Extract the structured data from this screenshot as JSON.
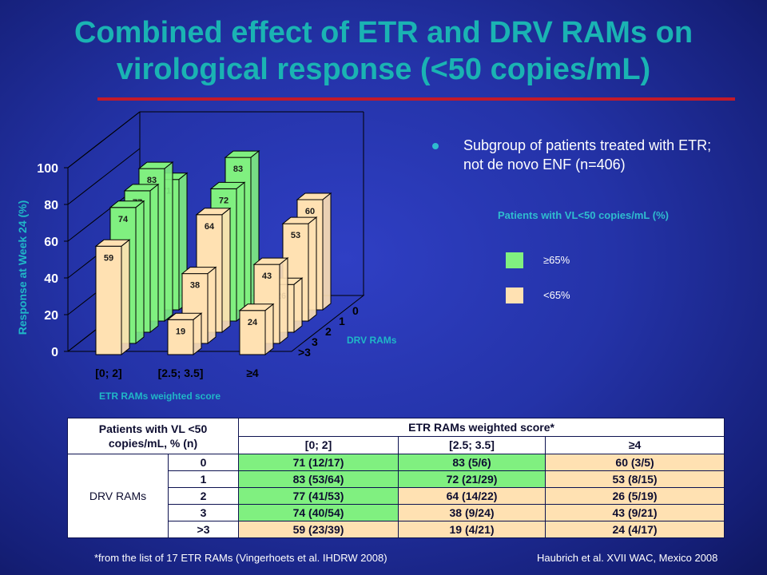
{
  "title": "Combined effect of ETR and DRV RAMs on virological response (<50 copies/mL)",
  "bullet": "Subgroup of patients treated with ETR; not de novo ENF (n=406)",
  "legend": {
    "title": "Patients with VL<50 copies/mL (%)",
    "items": [
      {
        "label": "≥65%",
        "color": "#80f080"
      },
      {
        "label": "<65%",
        "color": "#ffe1b2"
      }
    ]
  },
  "chart_data": {
    "type": "bar",
    "style": "3d-grouped",
    "ylabel": "Response at Week 24 (%)",
    "xlabel": "ETR RAMs weighted score",
    "zlabel": "DRV RAMs",
    "ylim": [
      0,
      100
    ],
    "yticks": [
      "0",
      "20",
      "40",
      "60",
      "80",
      "100"
    ],
    "categories": [
      "[0; 2]",
      "[2.5; 3.5]",
      "≥4"
    ],
    "depth_labels": [
      ">3",
      "3",
      "2",
      "1",
      "0"
    ],
    "series": [
      {
        "drv": ">3",
        "values": [
          59,
          19,
          24
        ]
      },
      {
        "drv": "3",
        "values": [
          74,
          38,
          43
        ]
      },
      {
        "drv": "2",
        "values": [
          77,
          64,
          26
        ]
      },
      {
        "drv": "1",
        "values": [
          83,
          72,
          53
        ]
      },
      {
        "drv": "0",
        "values": [
          71,
          83,
          60
        ]
      }
    ],
    "threshold": 65,
    "colors": {
      "high": "#80f080",
      "low": "#ffe1b2"
    }
  },
  "table": {
    "header_left": "Patients with VL <50 copies/mL, % (n)",
    "header_group": "ETR RAMs weighted score*",
    "columns": [
      "[0; 2]",
      "[2.5; 3.5]",
      "≥4"
    ],
    "row_group_label": "DRV RAMs",
    "rows": [
      {
        "label": "0",
        "cells": [
          {
            "text": "71 (12/17)",
            "level": "high"
          },
          {
            "text": "83 (5/6)",
            "level": "high"
          },
          {
            "text": "60 (3/5)",
            "level": "low"
          }
        ]
      },
      {
        "label": "1",
        "cells": [
          {
            "text": "83 (53/64)",
            "level": "high"
          },
          {
            "text": "72 (21/29)",
            "level": "high"
          },
          {
            "text": "53 (8/15)",
            "level": "low"
          }
        ]
      },
      {
        "label": "2",
        "cells": [
          {
            "text": "77 (41/53)",
            "level": "high"
          },
          {
            "text": "64 (14/22)",
            "level": "low"
          },
          {
            "text": "26 (5/19)",
            "level": "low"
          }
        ]
      },
      {
        "label": "3",
        "cells": [
          {
            "text": "74 (40/54)",
            "level": "high"
          },
          {
            "text": "38 (9/24)",
            "level": "low"
          },
          {
            "text": "43 (9/21)",
            "level": "low"
          }
        ]
      },
      {
        "label": ">3",
        "cells": [
          {
            "text": "59 (23/39)",
            "level": "low"
          },
          {
            "text": "19 (4/21)",
            "level": "low"
          },
          {
            "text": "24 (4/17)",
            "level": "low"
          }
        ]
      }
    ]
  },
  "footnote": "*from the list of 17 ETR RAMs (Vingerhoets et al. IHDRW 2008)",
  "citation": "Haubrich et al. XVII WAC, Mexico 2008"
}
